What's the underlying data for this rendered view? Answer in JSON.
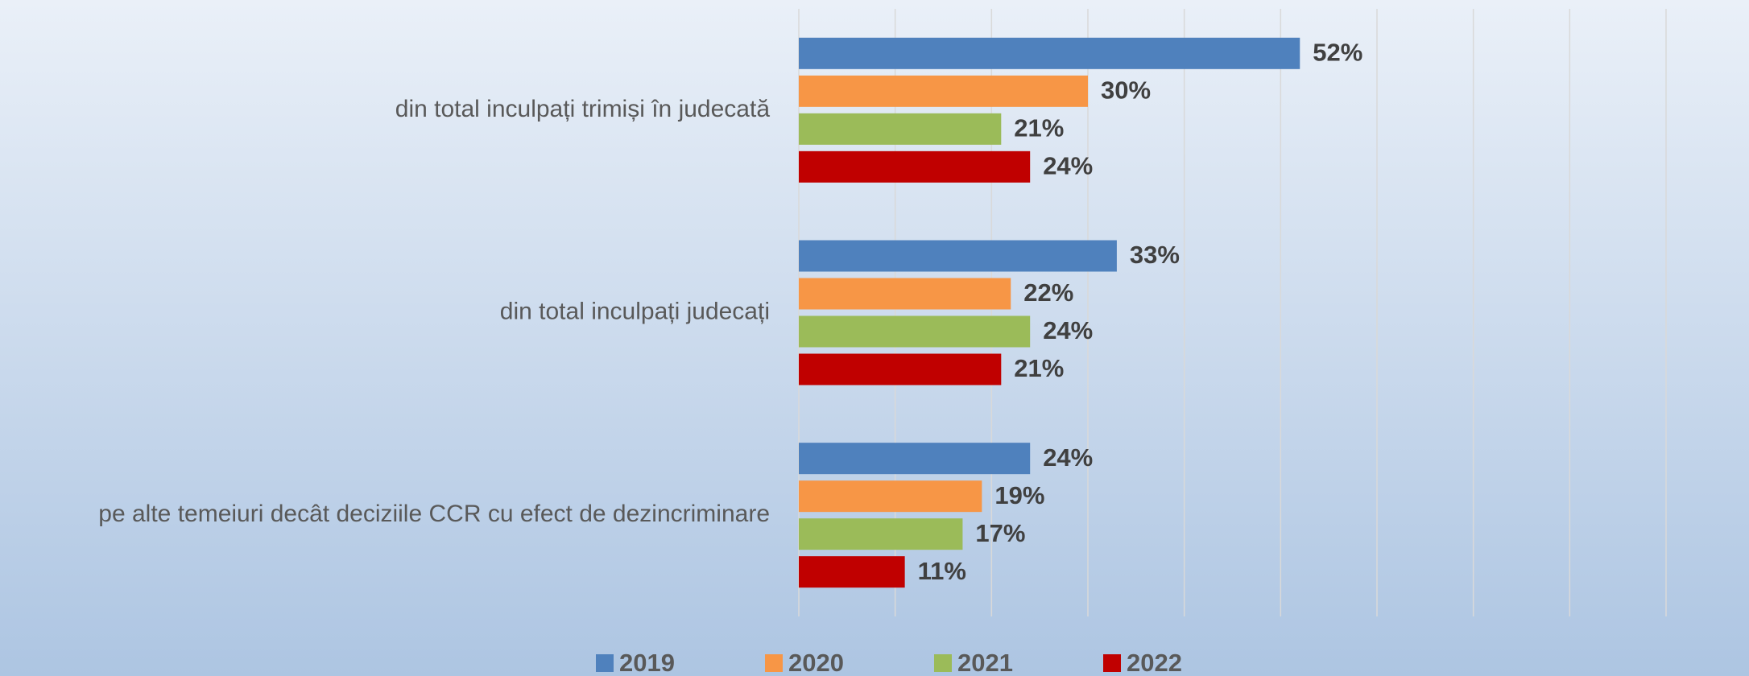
{
  "chart_data": {
    "type": "bar",
    "orientation": "horizontal",
    "categories": [
      "din total inculpați trimiși în judecată",
      "din total inculpați judecați",
      "pe alte temeiuri decât deciziile CCR cu efect de dezincriminare"
    ],
    "series": [
      {
        "name": "2019",
        "color": "#4f81bd",
        "values": [
          52,
          33,
          24
        ],
        "value_labels": [
          "52%",
          "33%",
          "24%"
        ]
      },
      {
        "name": "2020",
        "color": "#f79646",
        "values": [
          30,
          22,
          19
        ],
        "value_labels": [
          "30%",
          "22%",
          "19%"
        ]
      },
      {
        "name": "2021",
        "color": "#9bbb59",
        "values": [
          21,
          24,
          17
        ],
        "value_labels": [
          "21%",
          "24%",
          "17%"
        ]
      },
      {
        "name": "2022",
        "color": "#c00000",
        "values": [
          24,
          21,
          11
        ],
        "value_labels": [
          "24%",
          "21%",
          "11%"
        ]
      }
    ],
    "xlim": [
      0,
      90
    ],
    "xticks": [
      0,
      10,
      20,
      30,
      40,
      50,
      60,
      70,
      80,
      90
    ],
    "grid": true,
    "legend": "bottom"
  }
}
